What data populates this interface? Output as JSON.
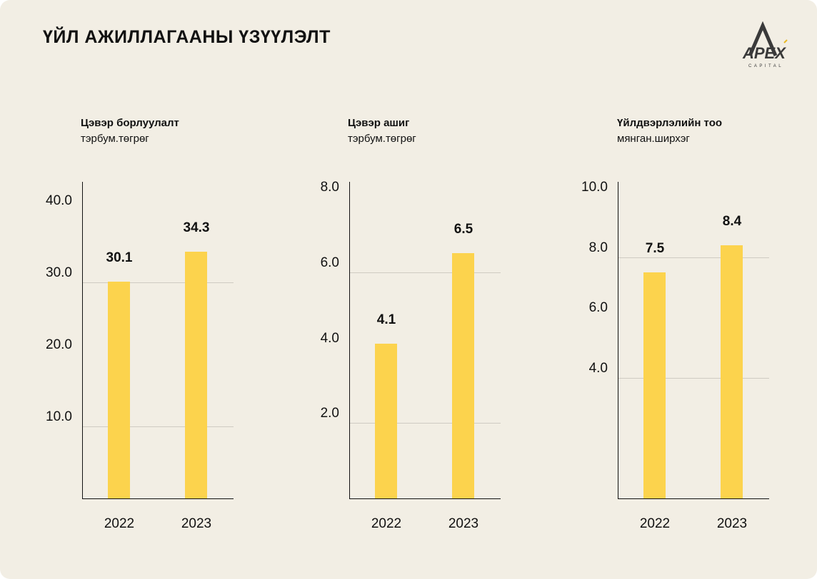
{
  "header": {
    "title": "ҮЙЛ АЖИЛЛАГААНЫ ҮЗҮҮЛЭЛТ",
    "logo_text": "APEX",
    "logo_subtext": "CAPITAL"
  },
  "colors": {
    "background": "#f2eee4",
    "bar": "#fcd34d",
    "grid": "#cfcbc2"
  },
  "chart_data": [
    {
      "type": "bar",
      "title": "Цэвэр борлуулалт",
      "subtitle": "тэрбум.төгрөг",
      "categories": [
        "2022",
        "2023"
      ],
      "values": [
        30.1,
        34.3
      ],
      "value_labels": [
        "30.1",
        "34.3"
      ],
      "ticks": [
        "10.0",
        "20.0",
        "30.0",
        "40.0"
      ],
      "tick_values": [
        10,
        20,
        30,
        40
      ],
      "grid_at": [
        10,
        30
      ],
      "ylim": [
        0,
        44
      ]
    },
    {
      "type": "bar",
      "title": "Цэвэр ашиг",
      "subtitle": "тэрбум.төгрөг",
      "categories": [
        "2022",
        "2023"
      ],
      "values": [
        4.1,
        6.5
      ],
      "value_labels": [
        "4.1",
        "6.5"
      ],
      "ticks": [
        "2.0",
        "4.0",
        "6.0",
        "8.0"
      ],
      "tick_values": [
        2,
        4,
        6,
        8
      ],
      "grid_at": [
        2,
        6
      ],
      "ylim": [
        0,
        8.4
      ]
    },
    {
      "type": "bar",
      "title": "Үйлдвэрлэлийн тоо",
      "subtitle": "мянган.ширхэг",
      "categories": [
        "2022",
        "2023"
      ],
      "values": [
        7.5,
        8.4
      ],
      "value_labels": [
        "7.5",
        "8.4"
      ],
      "ticks": [
        "4.0",
        "6.0",
        "8.0",
        "10.0"
      ],
      "tick_values": [
        4,
        6,
        8,
        10
      ],
      "grid_at": [
        4,
        8
      ],
      "ylim": [
        0,
        10.5
      ]
    }
  ]
}
